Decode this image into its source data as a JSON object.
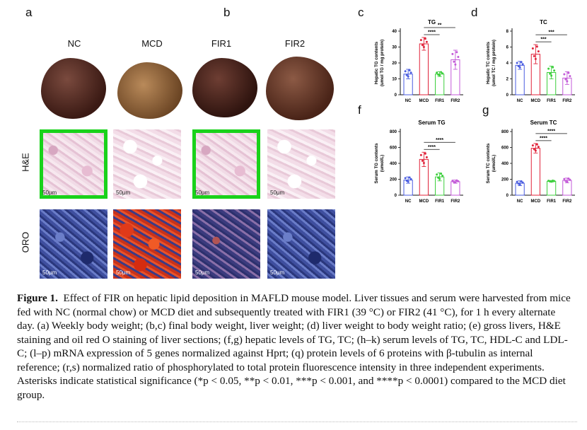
{
  "panels": {
    "a": "a",
    "b": "b",
    "c": "c",
    "d": "d",
    "f": "f",
    "g": "g"
  },
  "columns": [
    "NC",
    "MCD",
    "FIR1",
    "FIR2"
  ],
  "rows": {
    "he": "H&E",
    "oro": "ORO"
  },
  "scale_bar": "50μm",
  "colors": {
    "NC": "#4a5de0",
    "MCD": "#e0233a",
    "FIR1": "#3ccf3c",
    "FIR2": "#c35ad8"
  },
  "chart_data": [
    {
      "panel": "c",
      "type": "bar",
      "title": "TG",
      "ylabel": "Hepatic TG contents\n(umol TG / mg protein)",
      "categories": [
        "NC",
        "MCD",
        "FIR1",
        "FIR2"
      ],
      "values": [
        13,
        32,
        13,
        22
      ],
      "errors": [
        3,
        4,
        1.5,
        6
      ],
      "ylim": [
        0,
        40
      ],
      "yticks": [
        0,
        10,
        20,
        30,
        40
      ],
      "significance": [
        "****",
        "**"
      ]
    },
    {
      "panel": "d",
      "type": "bar",
      "title": "TC",
      "ylabel": "Hepatic TC contents\n(umol TC / mg protein)",
      "categories": [
        "NC",
        "MCD",
        "FIR1",
        "FIR2"
      ],
      "values": [
        3.7,
        5.1,
        2.8,
        2.1
      ],
      "errors": [
        0.5,
        1.2,
        0.8,
        0.8
      ],
      "ylim": [
        0,
        8
      ],
      "yticks": [
        0,
        2,
        4,
        6,
        8
      ],
      "significance": [
        "***",
        "***"
      ]
    },
    {
      "panel": "f",
      "type": "bar",
      "title": "Serum TG",
      "ylabel": "Serum TG contents\n(umol/L)",
      "categories": [
        "NC",
        "MCD",
        "FIR1",
        "FIR2"
      ],
      "values": [
        190,
        450,
        230,
        170
      ],
      "errors": [
        40,
        90,
        50,
        20
      ],
      "ylim": [
        0,
        800
      ],
      "yticks": [
        0,
        200,
        400,
        600,
        800
      ],
      "significance": [
        "****",
        "****"
      ]
    },
    {
      "panel": "g",
      "type": "bar",
      "title": "Serum TC",
      "ylabel": "Serum TC contents\n(umol/L)",
      "categories": [
        "NC",
        "MCD",
        "FIR1",
        "FIR2"
      ],
      "values": [
        150,
        590,
        175,
        185
      ],
      "errors": [
        30,
        60,
        10,
        30
      ],
      "ylim": [
        0,
        800
      ],
      "yticks": [
        0,
        200,
        400,
        600,
        800
      ],
      "significance": [
        "****",
        "****"
      ]
    }
  ],
  "caption": {
    "label": "Figure 1.",
    "text": "Effect of FIR on hepatic lipid deposition in MAFLD mouse model. Liver tissues and serum were harvested from mice fed with NC (normal chow) or MCD diet and subsequently treated with FIR1 (39 °C) or FIR2 (41 °C), for 1 h every alternate day. (a) Weekly body weight; (b,c) final body weight, liver weight; (d) liver weight to body weight ratio; (e) gross livers, H&E staining and oil red O staining of liver sections; (f,g) hepatic levels of TG, TC; (h–k) serum levels of TG, TC, HDL-C and LDL-C; (l–p) mRNA expression of 5 genes normalized against Hprt; (q) protein levels of 6 proteins with β-tubulin as internal reference; (r,s) normalized ratio of phosphorylated to total protein fluorescence intensity in three independent experiments. Asterisks indicate statistical significance (*p < 0.05, **p < 0.01, ***p < 0.001, and ****p < 0.0001) compared to the MCD diet group."
  }
}
